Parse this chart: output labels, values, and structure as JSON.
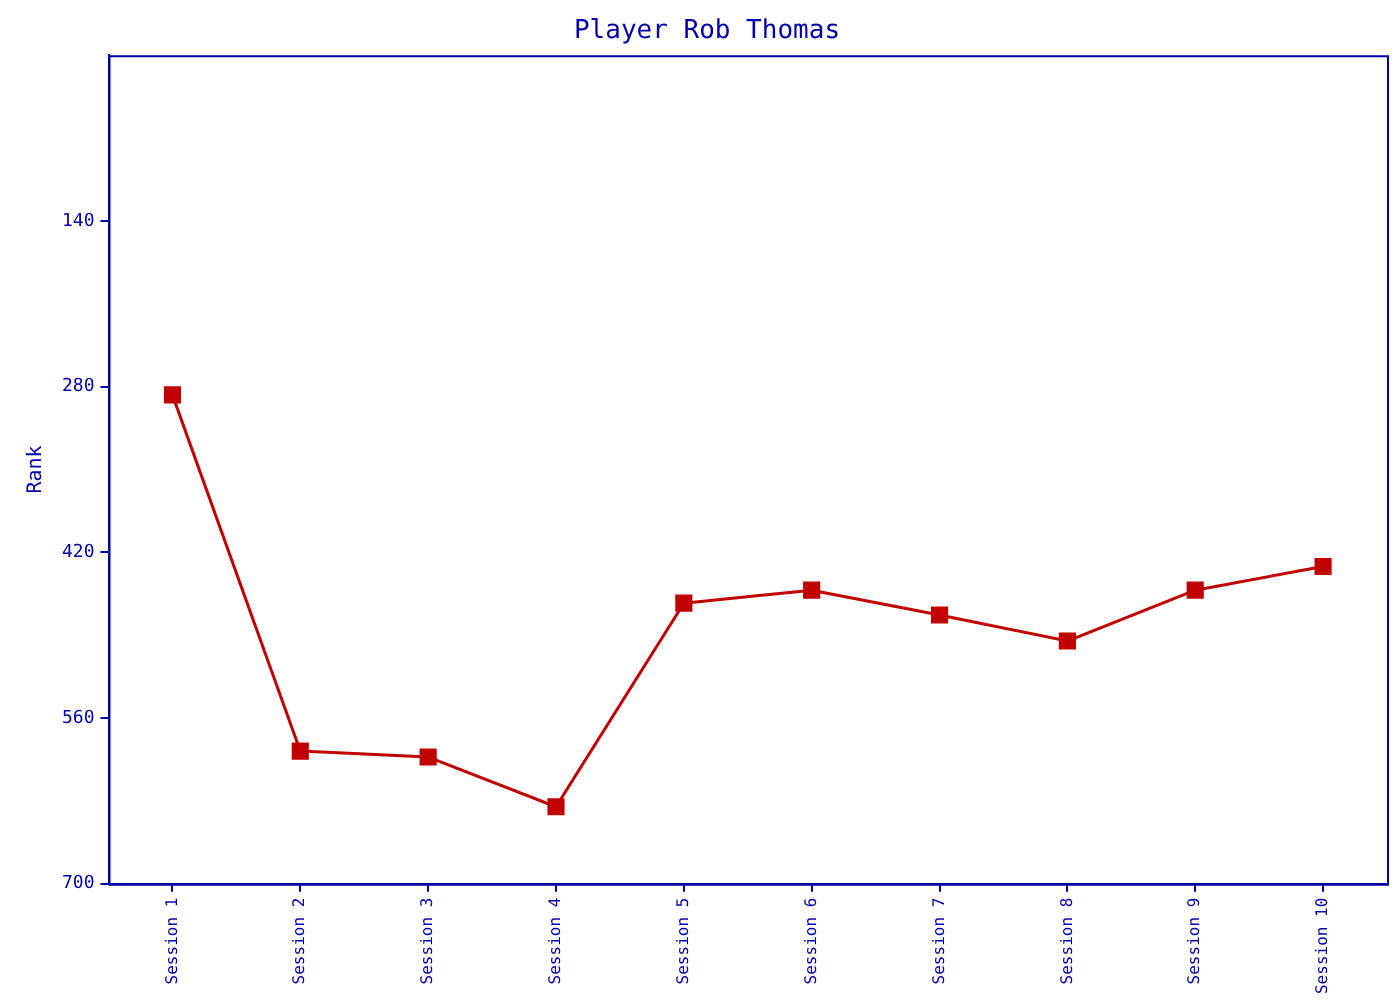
{
  "chart_data": {
    "type": "line",
    "title": "Player Rob Thomas",
    "ylabel": "Rank",
    "categories": [
      "Session 1",
      "Session 2",
      "Session 3",
      "Session 4",
      "Session 5",
      "Session 6",
      "Session 7",
      "Session 8",
      "Session 9",
      "Session 10"
    ],
    "series": [
      {
        "color": "#c00000",
        "values": [
          287,
          588,
          593,
          635,
          463,
          452,
          473,
          495,
          452,
          432
        ]
      }
    ],
    "ylim": [
      700,
      0
    ],
    "yticks": [
      140,
      280,
      420,
      560,
      700
    ],
    "grid": false,
    "legend": false,
    "marker": "square",
    "line_style": "solid"
  }
}
